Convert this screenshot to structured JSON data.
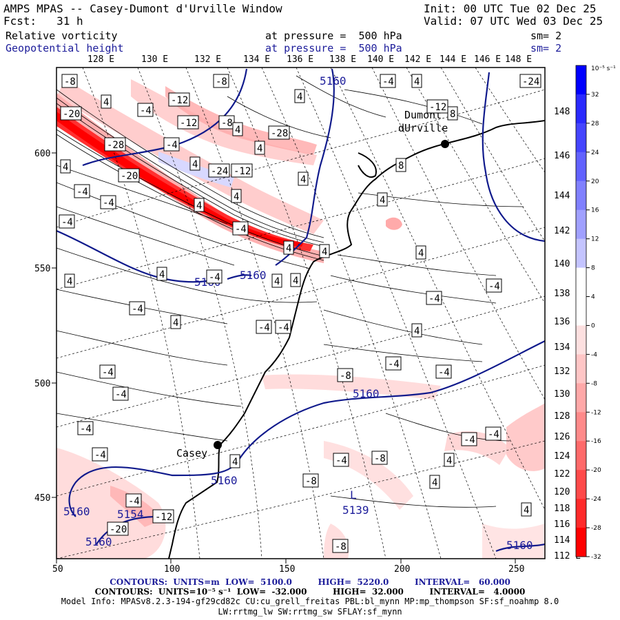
{
  "header": {
    "title": "AMPS MPAS -- Casey-Dumont d'Urville Window",
    "init": "Init: 00 UTC Tue 02 Dec 25",
    "forecast": "Fcst:   31 h",
    "valid": "Valid: 07 UTC Wed 03 Dec 25",
    "field1": {
      "name": "Relative vorticity",
      "level": "at pressure =  500 hPa",
      "smooth": "sm= 2"
    },
    "field2": {
      "name": "Geopotential height",
      "level": "at pressure =  500 hPa",
      "smooth": "sm= 2"
    }
  },
  "colors": {
    "blue_text": "#1c1c9a",
    "contour_blue": "#101a8c",
    "vort_positive": "#ff0000",
    "vort_negative": "#0000ff"
  },
  "lon_labels_top": [
    "128 E",
    "130 E",
    "132 E",
    "134 E",
    "136 E",
    "138 E",
    "140 E",
    "142 E",
    "144 E",
    "146 E",
    "148 E"
  ],
  "lon_labels_right": [
    "148 E",
    "146 E",
    "144 E",
    "142 E",
    "140 E",
    "138 E",
    "136 E",
    "134 E",
    "132 E",
    "130 E",
    "128 E",
    "126 E",
    "124 E",
    "122 E",
    "120 E",
    "118 E",
    "116 E",
    "114 E",
    "112 E"
  ],
  "axis_x_ticks": [
    "50",
    "100",
    "150",
    "200",
    "250"
  ],
  "axis_y_ticks": [
    "600",
    "550",
    "500",
    "450"
  ],
  "colorbar": {
    "unit": "10⁻⁵ s⁻¹",
    "labels": [
      "32",
      "28",
      "24",
      "20",
      "16",
      "12",
      "8",
      "4",
      "0",
      "-4",
      "-8",
      "-12",
      "-16",
      "-20",
      "-24",
      "-28",
      "-32"
    ],
    "colors": [
      "#0000ff",
      "#2a2aff",
      "#4545ff",
      "#6262ff",
      "#8080ff",
      "#a0a0ff",
      "#c4c4ff",
      "#ffffff",
      "#ffffff",
      "#fde0e0",
      "#ffc6c6",
      "#ffa8a8",
      "#ff8a8a",
      "#ff6a6a",
      "#ff4a4a",
      "#ff2a2a",
      "#ff0000"
    ]
  },
  "places": {
    "dumont": "Dumont d'Urville",
    "dumont_line1": "Dumont",
    "dumont_line2": "dUrville",
    "casey": "Casey"
  },
  "height_labels": [
    "5160",
    "5160",
    "5160",
    "5160",
    "5160",
    "5160",
    "5160",
    "5160",
    "5160",
    "5139",
    "5154"
  ],
  "low_marker": "L",
  "vorticity_labels": [
    "-8",
    "-8",
    "4",
    "-4",
    "-12",
    "-20",
    "-12",
    "-8",
    "-4",
    "4",
    "-24",
    "4",
    "-12",
    "8",
    "8",
    "4",
    "4",
    "-28",
    "-4",
    "-28",
    "4",
    "-20",
    "4",
    "-24",
    "-12",
    "4",
    "4",
    "-4",
    "-4",
    "4",
    "-4",
    "4",
    "-4",
    "4",
    "4",
    "4",
    "4",
    "4",
    "4",
    "4",
    "-4",
    "-4",
    "-4",
    "-4",
    "4",
    "-4",
    "-4",
    "4",
    "-4",
    "-8",
    "-4",
    "-4",
    "-4",
    "-4",
    "-4",
    "4",
    "-4",
    "-8",
    "-4",
    "-4",
    "4",
    "4"
  ],
  "footer": {
    "line1": "CONTOURS:  UNITS=m  LOW=  5100.0         HIGH=  5220.0         INTERVAL=   60.000",
    "line2": "CONTOURS:  UNITS=10⁻⁵ s⁻¹  LOW=  -32.000         HIGH=  32.000         INTERVAL=   4.0000",
    "line3": "Model Info: MPASv8.2.3-194-gf29cd82c CU:cu_grell_freitas PBL:bl_mynn MP:mp_thompson SF:sf_noahmp 8.0",
    "line4": "LW:rrtmg_lw SW:rrtmg_sw SFLAY:sf_mynn"
  }
}
